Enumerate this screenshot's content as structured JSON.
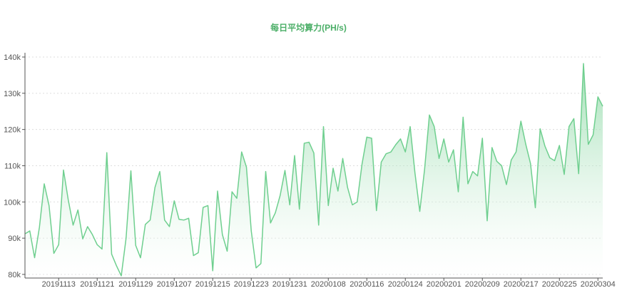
{
  "colors": {
    "title": "#4caf68",
    "line": "#6fcf8f",
    "area_top": "#7fd49a",
    "area_bottom": "#ffffff",
    "grid": "#dddddd",
    "axis": "#555555"
  },
  "chart_data": {
    "type": "area",
    "title": "每日平均算力(PH/s)",
    "xlabel": "",
    "ylabel": "",
    "ylim": [
      79000,
      140000
    ],
    "grid": "horizontal-dashed",
    "legend": "none",
    "y_ticks": [
      {
        "value": 80000,
        "label": "80k"
      },
      {
        "value": 90000,
        "label": "90k"
      },
      {
        "value": 100000,
        "label": "100k"
      },
      {
        "value": 110000,
        "label": "110k"
      },
      {
        "value": 120000,
        "label": "120k"
      },
      {
        "value": 130000,
        "label": "130k"
      },
      {
        "value": 140000,
        "label": "140k"
      }
    ],
    "x_tick_labels": [
      "20191113",
      "20191121",
      "20191129",
      "20191207",
      "20191215",
      "20191223",
      "20191231",
      "20200108",
      "20200116",
      "20200124",
      "20200201",
      "20200209",
      "20200217",
      "20200225",
      "20200304"
    ],
    "x_tick_indices": [
      7,
      15,
      23,
      31,
      39,
      47,
      55,
      63,
      71,
      79,
      87,
      95,
      103,
      111,
      119
    ],
    "values": [
      91200,
      92000,
      84600,
      93000,
      105000,
      99000,
      85800,
      88200,
      108800,
      100500,
      93600,
      97800,
      89800,
      93200,
      91000,
      88200,
      87000,
      113600,
      85600,
      82400,
      79600,
      90000,
      108600,
      88000,
      84600,
      93800,
      95000,
      104000,
      108400,
      95000,
      93200,
      100300,
      95200,
      95000,
      95500,
      85200,
      86000,
      98500,
      99000,
      81000,
      103000,
      91000,
      86400,
      102800,
      101000,
      113800,
      109600,
      92000,
      81800,
      83000,
      108400,
      94200,
      97000,
      101800,
      108700,
      99200,
      112800,
      98000,
      116200,
      116500,
      113500,
      93600,
      120800,
      99000,
      109300,
      103000,
      112000,
      104000,
      99200,
      100000,
      110400,
      117900,
      117600,
      97600,
      111000,
      113300,
      113800,
      115800,
      117400,
      113800,
      120800,
      108000,
      97400,
      109000,
      124000,
      120800,
      112000,
      117400,
      111000,
      114400,
      102800,
      123400,
      105000,
      108400,
      107200,
      117600,
      94800,
      115000,
      111200,
      110000,
      104800,
      111600,
      113800,
      122300,
      116000,
      110600,
      98400,
      120200,
      115400,
      112200,
      111400,
      115600,
      107600,
      120800,
      123000,
      107800,
      138200,
      115900,
      118500,
      129000,
      126400
    ]
  }
}
